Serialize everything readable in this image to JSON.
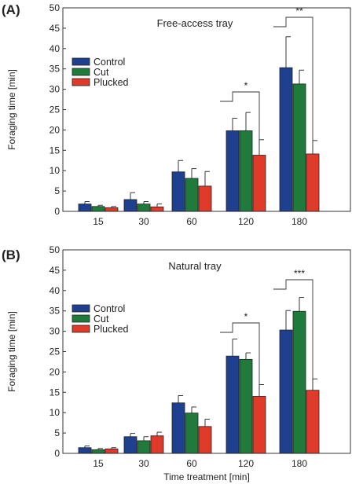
{
  "chart_data": [
    {
      "type": "bar",
      "panel_label": "(A)",
      "title": "Free-access tray",
      "ylabel": "Foraging time [min]",
      "xlabel": "",
      "ylim": [
        0,
        50
      ],
      "yticks": [
        0,
        5,
        10,
        15,
        20,
        25,
        30,
        35,
        40,
        45,
        50
      ],
      "categories": [
        "15",
        "30",
        "60",
        "120",
        "180"
      ],
      "legend_position": "left",
      "series": [
        {
          "name": "Control",
          "color": "#1f3f8f",
          "values": [
            1.8,
            2.9,
            9.7,
            19.8,
            35.3
          ],
          "errors": [
            0.6,
            1.7,
            2.8,
            3.1,
            7.6
          ]
        },
        {
          "name": "Cut",
          "color": "#1f7a3c",
          "values": [
            1.2,
            1.8,
            8.1,
            19.8,
            31.3
          ],
          "errors": [
            0.3,
            0.6,
            2.4,
            4.5,
            3.4
          ]
        },
        {
          "name": "Plucked",
          "color": "#e03a2a",
          "values": [
            0.9,
            1.1,
            6.2,
            13.8,
            14.1
          ],
          "errors": [
            0.3,
            0.7,
            3.6,
            3.8,
            3.3
          ]
        }
      ],
      "annotations": [
        {
          "category": "120",
          "label": "*"
        },
        {
          "category": "180",
          "label": "**"
        }
      ]
    },
    {
      "type": "bar",
      "panel_label": "(B)",
      "title": "Natural tray",
      "ylabel": "Foraging time [min]",
      "xlabel": "Time treatment [min]",
      "ylim": [
        0,
        50
      ],
      "yticks": [
        0,
        5,
        10,
        15,
        20,
        25,
        30,
        35,
        40,
        45,
        50
      ],
      "categories": [
        "15",
        "30",
        "60",
        "120",
        "180"
      ],
      "legend_position": "left",
      "series": [
        {
          "name": "Control",
          "color": "#1f3f8f",
          "values": [
            1.4,
            4.1,
            12.4,
            23.9,
            30.3
          ],
          "errors": [
            0.4,
            0.8,
            1.8,
            4.2,
            4.8
          ]
        },
        {
          "name": "Cut",
          "color": "#1f7a3c",
          "values": [
            0.9,
            3.1,
            9.9,
            23.1,
            34.9
          ],
          "errors": [
            0.3,
            1.0,
            1.5,
            1.6,
            3.4
          ]
        },
        {
          "name": "Plucked",
          "color": "#e03a2a",
          "values": [
            1.1,
            4.3,
            6.6,
            14.0,
            15.5
          ],
          "errors": [
            0.3,
            0.9,
            1.8,
            2.9,
            2.8
          ]
        }
      ],
      "annotations": [
        {
          "category": "120",
          "label": "*"
        },
        {
          "category": "180",
          "label": "***"
        }
      ]
    }
  ]
}
